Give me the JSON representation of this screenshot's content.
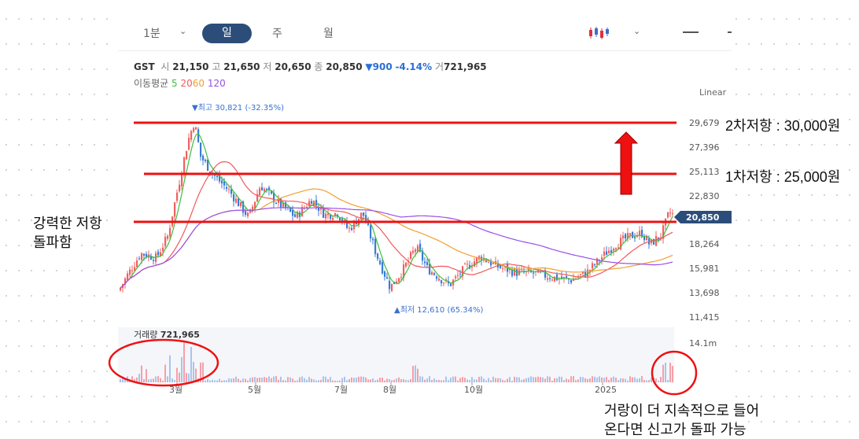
{
  "toolbar": {
    "minute": "1분",
    "day": "일",
    "week": "주",
    "month": "월",
    "candle_icon": "candlestick-icon",
    "chevron_icon": "chevron-down-icon"
  },
  "ticker": {
    "name": "GST",
    "open_label": "시",
    "open": "21,150",
    "high_label": "고",
    "high": "21,650",
    "low_label": "저",
    "low": "20,650",
    "close_label": "종",
    "close": "20,850",
    "change": "▼900",
    "change_pct": "-4.14%",
    "volume_label": "거",
    "volume": "721,965"
  },
  "ma": {
    "label": "이동평균",
    "p5": "5",
    "p20": "20",
    "p60": "60",
    "p120": "120",
    "colors": {
      "p5": "#3fbf3f",
      "p20": "#f05a5a",
      "p60": "#f0a030",
      "p120": "#9a50e8"
    }
  },
  "scale_mode": "Linear",
  "chart_data": {
    "type": "candlestick",
    "y_ticks": [
      "29,679",
      "27,396",
      "25,113",
      "22,830",
      "20,850",
      "18,264",
      "15,981",
      "13,698",
      "11,415"
    ],
    "current_price": "20,850",
    "high_marker": "▼최고 30,821 (-32.35%)",
    "low_marker": "▲최저 12,610 (65.34%)",
    "x_ticks": [
      "3월",
      "5월",
      "7월",
      "8월",
      "10월",
      "2025"
    ],
    "volume_label": "거래량",
    "volume_value": "721,965",
    "volume_max_tick": "14.1m",
    "colors": {
      "up": "#f06060",
      "down": "#3a7bd5"
    }
  },
  "annotations": {
    "resistance2": "2차저항 : 30,000원",
    "resistance1": "1차저항 : 25,000원",
    "breakout_line1": "강력한 저항",
    "breakout_line2": "돌파함",
    "volume_note_line1": "거랑이 더 지속적으로 들어",
    "volume_note_line2": "온다면 신고가 돌파 가능",
    "line_color": "#ee1111"
  }
}
